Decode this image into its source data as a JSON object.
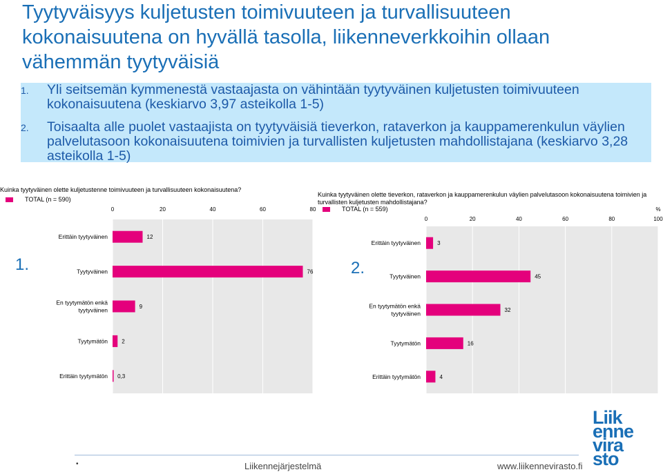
{
  "title": "Tyytyväisyys kuljetusten toimivuuteen ja turvallisuuteen kokonaisuutena on hyvällä tasolla, liikenneverkkoihin ollaan vähemmän tyytyväisiä",
  "bullets": [
    {
      "num": "1.",
      "text": "Yli seitsemän kymmenestä vastaajasta on vähintään tyytyväinen kuljetusten toimivuuteen kokonaisuutena (keskiarvo 3,97 asteikolla 1-5)"
    },
    {
      "num": "2.",
      "text": "Toisaalta alle puolet vastaajista on tyytyväisiä tieverkon, rataverkon ja kauppamerenkulun väylien palvelutasoon kokonaisuutena toimivien ja turvallisten kuljetusten mahdollistajana  (keskiarvo 3,28 asteikolla 1-5)"
    }
  ],
  "colors": {
    "bar": "#e4007c",
    "title": "#1a6fb6",
    "bullet_bg": "#c4e8fb",
    "bullet_text": "#1d5aa8",
    "plot_bg": "#e8e8e8"
  },
  "chart_data": [
    {
      "type": "bar",
      "orientation": "horizontal",
      "title": "Kuinka tyytyväinen olette kuljetustenne toimivuuteen ja turvallisuuteen kokonaisuutena?",
      "marker": "1.",
      "categories": [
        "Erittäin tyytyväinen",
        "Tyytyväinen",
        "En tyytymätön enkä tyytyväinen",
        "Tyytymätön",
        "Erittäin tyytymätön"
      ],
      "series": [
        {
          "name": "TOTAL (n = 590)",
          "values": [
            12,
            76,
            9,
            2,
            0.3
          ]
        }
      ],
      "value_labels": [
        "12",
        "76",
        "9",
        "2",
        "0,3"
      ],
      "xticks": [
        "0",
        "20",
        "40",
        "60",
        "80"
      ],
      "xlim": [
        0,
        80
      ],
      "xlabel": "",
      "ylabel": ""
    },
    {
      "type": "bar",
      "orientation": "horizontal",
      "title": "Kuinka tyytyväinen olette tieverkon, rataverkon ja kauppamerenkulun väylien palvelutasoon kokonaisuutena toimivien ja turvallisten kuljetusten mahdollistajana?",
      "marker": "2.",
      "categories": [
        "Erittäin tyytyväinen",
        "Tyytyväinen",
        "En tyytymätön enkä tyytyväinen",
        "Tyytymätön",
        "Erittäin tyytymätön"
      ],
      "series": [
        {
          "name": "TOTAL (n = 559)",
          "values": [
            3,
            45,
            32,
            16,
            4
          ]
        }
      ],
      "value_labels": [
        "3",
        "45",
        "32",
        "16",
        "4"
      ],
      "xticks": [
        "0",
        "20",
        "40",
        "60",
        "80",
        "100"
      ],
      "xlim": [
        0,
        100
      ],
      "unit": "%",
      "xlabel": "",
      "ylabel": ""
    }
  ],
  "footer": {
    "center": "Liikennejärjestelmä",
    "url": "www.liikennevirasto.fi",
    "bullet": "•"
  },
  "logo": {
    "lines": [
      "Liik",
      "enne",
      "vira",
      "sto"
    ]
  }
}
